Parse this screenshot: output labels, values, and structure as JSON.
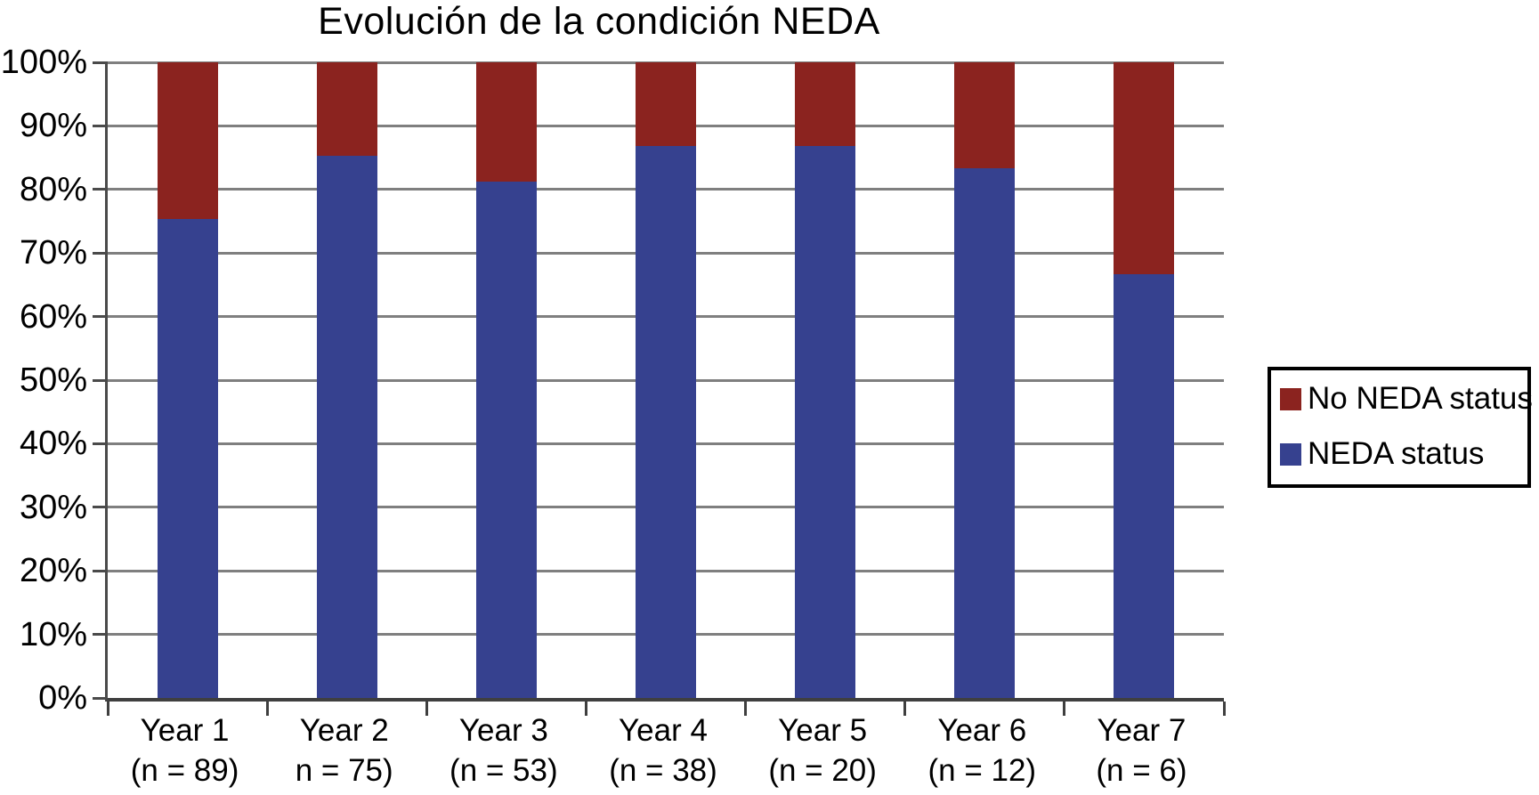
{
  "chart_data": {
    "type": "bar",
    "stacked": true,
    "title": "Evolución de la condición NEDA",
    "categories": [
      "Year 1",
      "Year 2",
      "Year 3",
      "Year 4",
      "Year 5",
      "Year 6",
      "Year 7"
    ],
    "category_sublabels": [
      "(n = 89)",
      "n = 75)",
      "(n = 53)",
      "(n = 38)",
      "(n = 20)",
      "(n = 12)",
      "(n = 6)"
    ],
    "series": [
      {
        "name": "NEDA status",
        "color": "#36418F",
        "values": [
          75.3,
          85.3,
          81.3,
          86.8,
          86.8,
          83.3,
          66.7
        ]
      },
      {
        "name": "No NEDA status",
        "color": "#8B231F",
        "values": [
          24.7,
          14.7,
          18.7,
          13.2,
          13.2,
          16.7,
          33.3
        ]
      }
    ],
    "xlabel": "",
    "ylabel": "",
    "ylim": [
      0,
      100
    ],
    "y_tick_step": 10,
    "y_tick_labels": [
      "0%",
      "10%",
      "20%",
      "30%",
      "40%",
      "50%",
      "60%",
      "70%",
      "80%",
      "90%",
      "100%"
    ],
    "grid": "horizontal",
    "legend": {
      "position": "right",
      "items": [
        {
          "label": "No NEDA status",
          "color": "#8B231F"
        },
        {
          "label": "NEDA status",
          "color": "#36418F"
        }
      ]
    },
    "colors": {
      "background": "#FFFFFF",
      "gridline": "#7F7F7F",
      "axis": "#4A4A4A",
      "text": "#000000"
    }
  }
}
